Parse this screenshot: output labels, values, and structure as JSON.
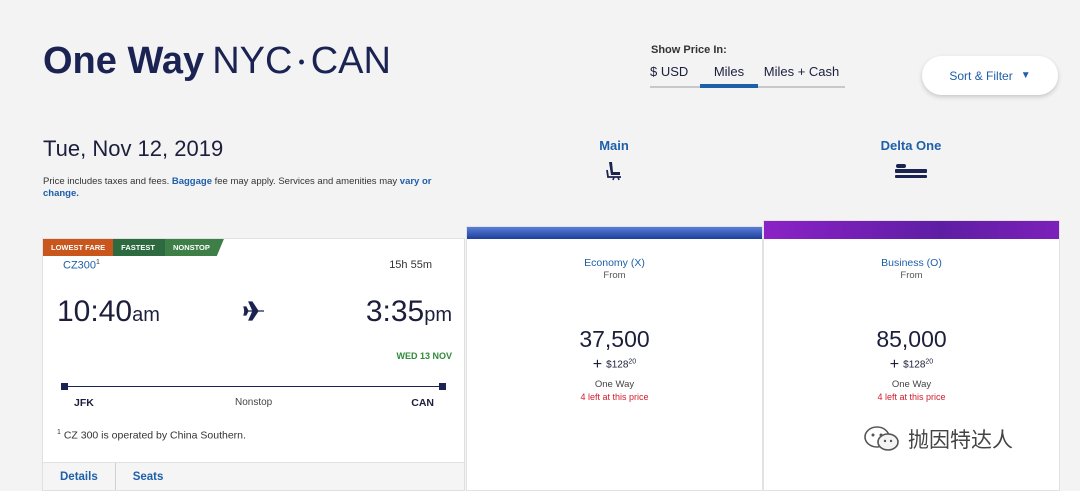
{
  "header": {
    "title_bold": "One Way",
    "origin": "NYC",
    "separator": "•",
    "destination": "CAN"
  },
  "price_toggle": {
    "label": "Show Price In:",
    "options": [
      "$ USD",
      "Miles",
      "Miles + Cash"
    ],
    "selected": "Miles"
  },
  "sort_filter": {
    "label": "Sort & Filter",
    "caret": "▼"
  },
  "date": "Tue, Nov 12, 2019",
  "price_note": {
    "text1": "Price includes taxes and fees. ",
    "link1": "Baggage",
    "text2": " fee may apply. Services and amenities may ",
    "link2": "vary or change."
  },
  "cabins": [
    {
      "name": "Main",
      "icon": "seat-icon"
    },
    {
      "name": "Delta One",
      "icon": "flat-bed-icon"
    }
  ],
  "flight": {
    "badges": [
      "LOWEST FARE",
      "FASTEST",
      "NONSTOP"
    ],
    "number": "CZ300",
    "number_sup": "1",
    "duration": "15h 55m",
    "depart_time": "10:40",
    "depart_ampm": "am",
    "arrive_time": "3:35",
    "arrive_ampm": "pm",
    "arrive_date": "WED 13 NOV",
    "origin": "JFK",
    "destination": "CAN",
    "stops": "Nonstop",
    "footnote_sup": "1",
    "footnote": " CZ 300 is operated by China Southern.",
    "tabs": [
      "Details",
      "Seats"
    ]
  },
  "fares": [
    {
      "name": "Economy (X)",
      "from": "From",
      "miles": "37,500",
      "plus": "+",
      "cash": "$128",
      "cash_cents": "20",
      "type": "One Way",
      "availability": "4 left at this price",
      "bar_color": "#1d3f9c"
    },
    {
      "name": "Business (O)",
      "from": "From",
      "miles": "85,000",
      "plus": "+",
      "cash": "$128",
      "cash_cents": "20",
      "type": "One Way",
      "availability": "4 left at this price",
      "bar_color": "#6a1fb0"
    }
  ],
  "watermark": "抛因特达人"
}
